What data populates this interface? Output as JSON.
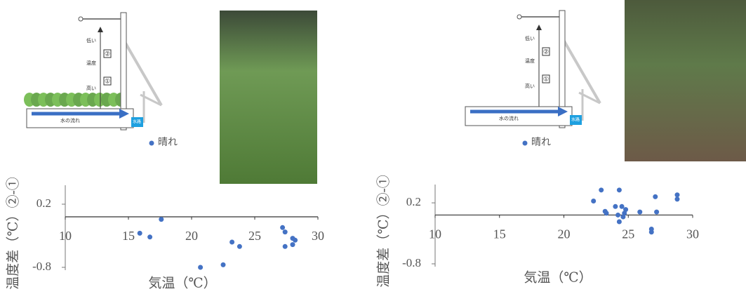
{
  "chart_data": [
    {
      "type": "scatter",
      "x_label": "気温（℃）",
      "y_label": "温度差（℃）②-①",
      "xlim": [
        10,
        30
      ],
      "xticks": [
        10,
        15,
        20,
        25,
        30
      ],
      "ylim": [
        -0.8,
        0.5
      ],
      "yticks": [
        -0.8,
        0.2
      ],
      "series": [
        {
          "name": "晴れ",
          "color": "#4472c4",
          "x": [
            15.9,
            16.7,
            17.6,
            20.7,
            22.5,
            23.2,
            23.8,
            27.2,
            27.4,
            27.4,
            28.0,
            28.2,
            28.0
          ],
          "values": [
            -0.26,
            -0.32,
            -0.04,
            -0.8,
            -0.76,
            -0.4,
            -0.47,
            -0.17,
            -0.24,
            -0.47,
            -0.34,
            -0.37,
            -0.44
          ]
        }
      ]
    },
    {
      "type": "scatter",
      "x_label": "気温（℃）",
      "y_label": "温度差（℃）②-①",
      "xlim": [
        10,
        30
      ],
      "xticks": [
        10,
        15,
        20,
        25,
        30
      ],
      "ylim": [
        -0.8,
        0.5
      ],
      "yticks": [
        -0.8,
        0.2
      ],
      "series": [
        {
          "name": "晴れ",
          "color": "#4472c4",
          "x": [
            22.3,
            22.9,
            23.2,
            23.3,
            24.0,
            24.3,
            24.2,
            24.3,
            24.5,
            24.6,
            24.8,
            24.7,
            25.9,
            26.8,
            26.8,
            27.1,
            27.2,
            28.8,
            28.8
          ],
          "values": [
            0.23,
            0.41,
            0.06,
            0.03,
            0.14,
            0.41,
            0.0,
            -0.11,
            0.14,
            -0.03,
            0.09,
            0.03,
            0.05,
            -0.23,
            -0.28,
            0.3,
            0.05,
            0.33,
            0.26
          ]
        }
      ]
    }
  ],
  "diagrams": [
    {
      "low": "低い",
      "sensor_2": "②",
      "temperature": "温度",
      "sensor_1": "①",
      "high": "高い",
      "flow": "水の流れ",
      "channel": "水路"
    },
    {
      "low": "低い",
      "sensor_2": "②",
      "temperature": "温度",
      "sensor_1": "①",
      "high": "高い",
      "flow": "水の流れ",
      "channel": "水路"
    }
  ]
}
